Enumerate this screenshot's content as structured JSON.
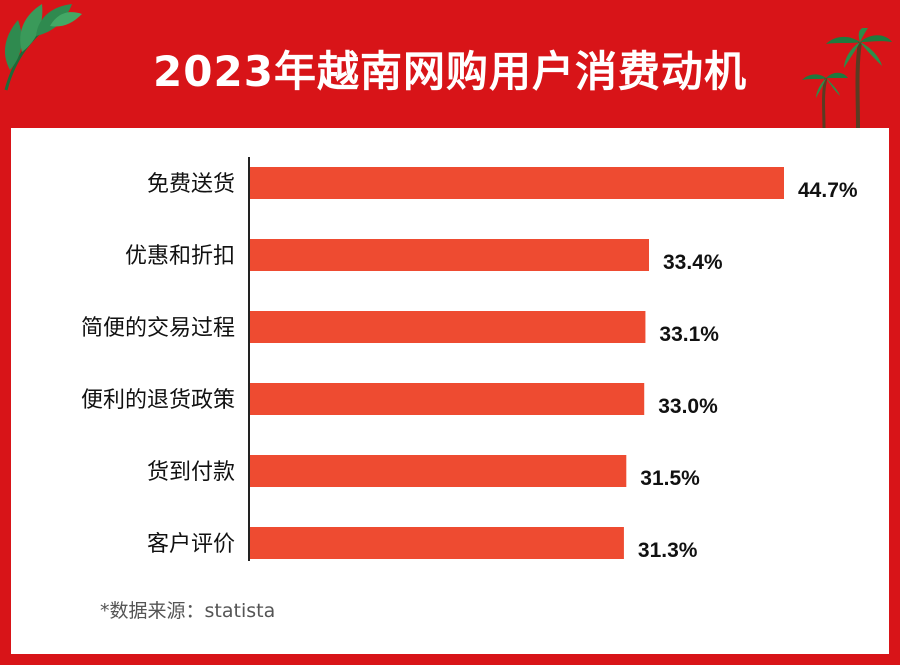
{
  "header": {
    "title": "2023年越南网购用户消费动机"
  },
  "footer": {
    "source": "*数据来源：statista"
  },
  "colors": {
    "bar": "#ee4b31",
    "background": "#d81418",
    "panel": "#ffffff"
  },
  "chart_data": {
    "type": "bar",
    "orientation": "horizontal",
    "categories": [
      "免费送货",
      "优惠和折扣",
      "简便的交易过程",
      "便利的退货政策",
      "货到付款",
      "客户评价"
    ],
    "values": [
      44.7,
      33.4,
      33.1,
      33.0,
      31.5,
      31.3
    ],
    "value_labels": [
      "44.7%",
      "33.4%",
      "33.1%",
      "33.0%",
      "31.5%",
      "31.3%"
    ],
    "title": "2023年越南网购用户消费动机",
    "xlim": [
      0,
      44.7
    ],
    "grid": false,
    "legend": "none"
  }
}
